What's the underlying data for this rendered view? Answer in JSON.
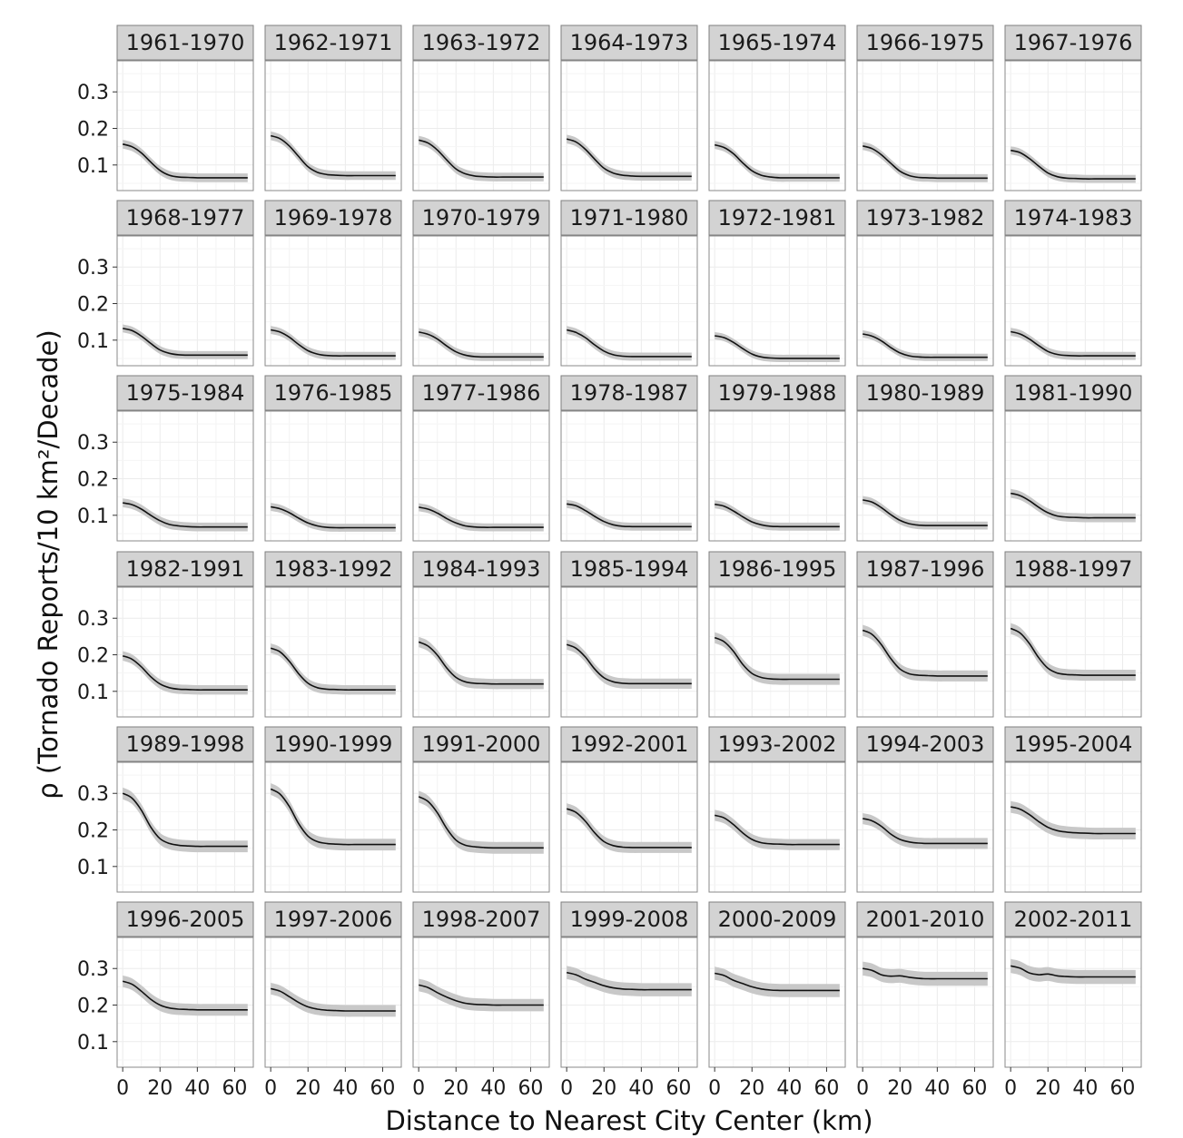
{
  "chart_data": {
    "type": "line",
    "facet_layout": "7 columns x 6 rows",
    "xlabel": "Distance to Nearest City Center (km)",
    "ylabel": "ρ (Tornado Reports/10 km²/Decade)",
    "xlim": [
      -3,
      70
    ],
    "ylim": [
      0.03,
      0.385
    ],
    "x_ticks": [
      0,
      20,
      40,
      60
    ],
    "y_ticks": [
      0.1,
      0.2,
      0.3
    ],
    "grid": true,
    "legend": "none",
    "colors": {
      "line": "#111111",
      "ribbon": "#c8c8c8",
      "strip_fill": "#d3d3d3",
      "strip_border": "#7f7f7f",
      "grid": "#ececec",
      "panel_border": "#8a8a8a"
    },
    "x": [
      0,
      5,
      10,
      15,
      20,
      25,
      30,
      35,
      40,
      45,
      50,
      55,
      60,
      65,
      67
    ],
    "panels": [
      {
        "label": "1961-1970",
        "y": [
          0.157,
          0.15,
          0.133,
          0.108,
          0.085,
          0.072,
          0.067,
          0.066,
          0.065,
          0.065,
          0.065,
          0.065,
          0.065,
          0.065,
          0.065
        ],
        "band": 0.012
      },
      {
        "label": "1962-1971",
        "y": [
          0.18,
          0.172,
          0.152,
          0.123,
          0.095,
          0.08,
          0.074,
          0.072,
          0.071,
          0.071,
          0.071,
          0.071,
          0.071,
          0.071,
          0.071
        ],
        "band": 0.012
      },
      {
        "label": "1963-1972",
        "y": [
          0.168,
          0.16,
          0.141,
          0.114,
          0.089,
          0.076,
          0.07,
          0.068,
          0.067,
          0.067,
          0.067,
          0.067,
          0.067,
          0.067,
          0.067
        ],
        "band": 0.012
      },
      {
        "label": "1964-1973",
        "y": [
          0.171,
          0.163,
          0.143,
          0.116,
          0.091,
          0.078,
          0.072,
          0.07,
          0.069,
          0.069,
          0.069,
          0.069,
          0.069,
          0.069,
          0.069
        ],
        "band": 0.012
      },
      {
        "label": "1965-1974",
        "y": [
          0.155,
          0.148,
          0.131,
          0.106,
          0.084,
          0.072,
          0.067,
          0.065,
          0.065,
          0.065,
          0.065,
          0.065,
          0.065,
          0.065,
          0.065
        ],
        "band": 0.011
      },
      {
        "label": "1966-1975",
        "y": [
          0.152,
          0.145,
          0.128,
          0.105,
          0.083,
          0.071,
          0.066,
          0.065,
          0.064,
          0.064,
          0.064,
          0.064,
          0.064,
          0.064,
          0.064
        ],
        "band": 0.011
      },
      {
        "label": "1967-1976",
        "y": [
          0.14,
          0.134,
          0.118,
          0.097,
          0.078,
          0.068,
          0.064,
          0.063,
          0.062,
          0.062,
          0.062,
          0.062,
          0.062,
          0.062,
          0.062
        ],
        "band": 0.011
      },
      {
        "label": "1968-1977",
        "y": [
          0.132,
          0.126,
          0.111,
          0.091,
          0.073,
          0.064,
          0.06,
          0.059,
          0.059,
          0.059,
          0.059,
          0.059,
          0.059,
          0.059,
          0.059
        ],
        "band": 0.011
      },
      {
        "label": "1969-1978",
        "y": [
          0.128,
          0.122,
          0.108,
          0.088,
          0.071,
          0.062,
          0.058,
          0.057,
          0.057,
          0.057,
          0.057,
          0.057,
          0.057,
          0.057,
          0.057
        ],
        "band": 0.011
      },
      {
        "label": "1970-1979",
        "y": [
          0.122,
          0.116,
          0.103,
          0.084,
          0.068,
          0.059,
          0.055,
          0.054,
          0.054,
          0.054,
          0.054,
          0.054,
          0.054,
          0.054,
          0.054
        ],
        "band": 0.011
      },
      {
        "label": "1971-1980",
        "y": [
          0.128,
          0.121,
          0.107,
          0.087,
          0.07,
          0.06,
          0.056,
          0.055,
          0.055,
          0.055,
          0.055,
          0.055,
          0.055,
          0.055,
          0.055
        ],
        "band": 0.011
      },
      {
        "label": "1972-1981",
        "y": [
          0.112,
          0.107,
          0.094,
          0.077,
          0.062,
          0.054,
          0.051,
          0.05,
          0.05,
          0.05,
          0.05,
          0.05,
          0.05,
          0.05,
          0.05
        ],
        "band": 0.01
      },
      {
        "label": "1973-1982",
        "y": [
          0.117,
          0.111,
          0.098,
          0.08,
          0.065,
          0.057,
          0.054,
          0.053,
          0.053,
          0.053,
          0.053,
          0.053,
          0.053,
          0.053,
          0.053
        ],
        "band": 0.01
      },
      {
        "label": "1974-1983",
        "y": [
          0.123,
          0.117,
          0.103,
          0.085,
          0.069,
          0.061,
          0.058,
          0.057,
          0.057,
          0.057,
          0.057,
          0.057,
          0.057,
          0.057,
          0.057
        ],
        "band": 0.011
      },
      {
        "label": "1975-1984",
        "y": [
          0.134,
          0.129,
          0.117,
          0.1,
          0.085,
          0.075,
          0.071,
          0.069,
          0.068,
          0.068,
          0.068,
          0.068,
          0.068,
          0.068,
          0.068
        ],
        "band": 0.012
      },
      {
        "label": "1976-1985",
        "y": [
          0.123,
          0.118,
          0.107,
          0.092,
          0.079,
          0.071,
          0.067,
          0.066,
          0.066,
          0.066,
          0.066,
          0.066,
          0.066,
          0.066,
          0.066
        ],
        "band": 0.011
      },
      {
        "label": "1977-1986",
        "y": [
          0.122,
          0.117,
          0.106,
          0.091,
          0.079,
          0.071,
          0.068,
          0.067,
          0.067,
          0.067,
          0.067,
          0.067,
          0.067,
          0.067,
          0.067
        ],
        "band": 0.011
      },
      {
        "label": "1978-1987",
        "y": [
          0.131,
          0.126,
          0.113,
          0.097,
          0.083,
          0.074,
          0.07,
          0.069,
          0.069,
          0.069,
          0.069,
          0.069,
          0.069,
          0.069,
          0.069
        ],
        "band": 0.011
      },
      {
        "label": "1979-1988",
        "y": [
          0.13,
          0.125,
          0.112,
          0.096,
          0.082,
          0.074,
          0.07,
          0.069,
          0.069,
          0.069,
          0.069,
          0.069,
          0.069,
          0.069,
          0.069
        ],
        "band": 0.011
      },
      {
        "label": "1980-1989",
        "y": [
          0.142,
          0.136,
          0.121,
          0.102,
          0.086,
          0.077,
          0.073,
          0.072,
          0.072,
          0.072,
          0.072,
          0.072,
          0.072,
          0.072,
          0.072
        ],
        "band": 0.011
      },
      {
        "label": "1981-1990",
        "y": [
          0.16,
          0.154,
          0.14,
          0.122,
          0.107,
          0.098,
          0.095,
          0.094,
          0.093,
          0.093,
          0.093,
          0.093,
          0.093,
          0.093,
          0.093
        ],
        "band": 0.012
      },
      {
        "label": "1982-1991",
        "y": [
          0.197,
          0.188,
          0.167,
          0.14,
          0.12,
          0.11,
          0.106,
          0.105,
          0.104,
          0.104,
          0.104,
          0.104,
          0.104,
          0.104,
          0.104
        ],
        "band": 0.013
      },
      {
        "label": "1983-1992",
        "y": [
          0.218,
          0.208,
          0.182,
          0.148,
          0.122,
          0.11,
          0.106,
          0.105,
          0.104,
          0.104,
          0.104,
          0.104,
          0.104,
          0.104,
          0.104
        ],
        "band": 0.013
      },
      {
        "label": "1984-1993",
        "y": [
          0.235,
          0.224,
          0.199,
          0.164,
          0.138,
          0.126,
          0.122,
          0.121,
          0.12,
          0.12,
          0.12,
          0.12,
          0.12,
          0.12,
          0.12
        ],
        "band": 0.014
      },
      {
        "label": "1985-1994",
        "y": [
          0.228,
          0.218,
          0.194,
          0.161,
          0.137,
          0.126,
          0.122,
          0.121,
          0.121,
          0.121,
          0.121,
          0.121,
          0.121,
          0.121,
          0.121
        ],
        "band": 0.014
      },
      {
        "label": "1986-1995",
        "y": [
          0.247,
          0.236,
          0.21,
          0.174,
          0.149,
          0.138,
          0.134,
          0.133,
          0.133,
          0.133,
          0.133,
          0.133,
          0.133,
          0.133,
          0.133
        ],
        "band": 0.015
      },
      {
        "label": "1987-1996",
        "y": [
          0.267,
          0.256,
          0.228,
          0.19,
          0.161,
          0.148,
          0.144,
          0.143,
          0.142,
          0.142,
          0.142,
          0.142,
          0.142,
          0.142,
          0.142
        ],
        "band": 0.015
      },
      {
        "label": "1988-1997",
        "y": [
          0.272,
          0.26,
          0.231,
          0.192,
          0.163,
          0.15,
          0.146,
          0.145,
          0.144,
          0.144,
          0.144,
          0.144,
          0.144,
          0.144,
          0.144
        ],
        "band": 0.015
      },
      {
        "label": "1989-1998",
        "y": [
          0.3,
          0.287,
          0.254,
          0.208,
          0.176,
          0.163,
          0.158,
          0.156,
          0.155,
          0.155,
          0.155,
          0.155,
          0.155,
          0.155,
          0.155
        ],
        "band": 0.016
      },
      {
        "label": "1990-1999",
        "y": [
          0.312,
          0.298,
          0.264,
          0.217,
          0.183,
          0.168,
          0.163,
          0.161,
          0.16,
          0.16,
          0.16,
          0.16,
          0.16,
          0.16,
          0.16
        ],
        "band": 0.016
      },
      {
        "label": "1991-2000",
        "y": [
          0.291,
          0.278,
          0.247,
          0.204,
          0.172,
          0.158,
          0.154,
          0.152,
          0.151,
          0.151,
          0.151,
          0.151,
          0.151,
          0.151,
          0.151
        ],
        "band": 0.016
      },
      {
        "label": "1992-2001",
        "y": [
          0.258,
          0.248,
          0.224,
          0.192,
          0.168,
          0.157,
          0.153,
          0.152,
          0.152,
          0.152,
          0.152,
          0.152,
          0.152,
          0.152,
          0.152
        ],
        "band": 0.015
      },
      {
        "label": "1993-2002",
        "y": [
          0.24,
          0.233,
          0.215,
          0.192,
          0.174,
          0.165,
          0.162,
          0.161,
          0.16,
          0.16,
          0.16,
          0.16,
          0.16,
          0.16,
          0.16
        ],
        "band": 0.015
      },
      {
        "label": "1994-2003",
        "y": [
          0.231,
          0.225,
          0.21,
          0.189,
          0.174,
          0.167,
          0.164,
          0.163,
          0.163,
          0.163,
          0.163,
          0.163,
          0.163,
          0.163,
          0.163
        ],
        "band": 0.015
      },
      {
        "label": "1995-2004",
        "y": [
          0.263,
          0.257,
          0.242,
          0.223,
          0.207,
          0.198,
          0.194,
          0.192,
          0.191,
          0.19,
          0.19,
          0.19,
          0.19,
          0.19,
          0.19
        ],
        "band": 0.016
      },
      {
        "label": "1996-2005",
        "y": [
          0.265,
          0.257,
          0.238,
          0.216,
          0.2,
          0.192,
          0.189,
          0.188,
          0.187,
          0.187,
          0.187,
          0.187,
          0.187,
          0.187,
          0.187
        ],
        "band": 0.016
      },
      {
        "label": "1997-2006",
        "y": [
          0.245,
          0.238,
          0.223,
          0.207,
          0.195,
          0.189,
          0.186,
          0.185,
          0.184,
          0.184,
          0.184,
          0.184,
          0.184,
          0.184,
          0.184
        ],
        "band": 0.016
      },
      {
        "label": "1998-2007",
        "y": [
          0.255,
          0.248,
          0.234,
          0.222,
          0.212,
          0.205,
          0.202,
          0.201,
          0.2,
          0.2,
          0.2,
          0.2,
          0.2,
          0.2,
          0.2
        ],
        "band": 0.017
      },
      {
        "label": "1999-2008",
        "y": [
          0.289,
          0.283,
          0.271,
          0.262,
          0.253,
          0.247,
          0.244,
          0.243,
          0.242,
          0.242,
          0.242,
          0.242,
          0.242,
          0.242,
          0.242
        ],
        "band": 0.018
      },
      {
        "label": "2000-2009",
        "y": [
          0.287,
          0.281,
          0.268,
          0.259,
          0.25,
          0.244,
          0.241,
          0.24,
          0.24,
          0.24,
          0.24,
          0.24,
          0.24,
          0.24,
          0.24
        ],
        "band": 0.018
      },
      {
        "label": "2001-2010",
        "y": [
          0.3,
          0.295,
          0.283,
          0.279,
          0.28,
          0.276,
          0.273,
          0.272,
          0.272,
          0.272,
          0.272,
          0.272,
          0.272,
          0.272,
          0.272
        ],
        "band": 0.019
      },
      {
        "label": "2002-2011",
        "y": [
          0.307,
          0.301,
          0.288,
          0.283,
          0.285,
          0.28,
          0.278,
          0.277,
          0.277,
          0.277,
          0.277,
          0.277,
          0.277,
          0.277,
          0.277
        ],
        "band": 0.019
      }
    ]
  }
}
